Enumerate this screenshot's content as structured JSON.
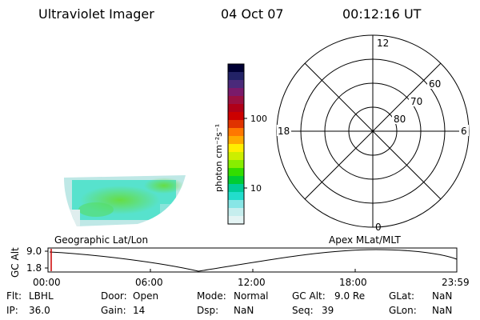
{
  "header": {
    "instrument": "Ultraviolet Imager",
    "date": "04 Oct 07",
    "time": "00:12:16 UT"
  },
  "colorbar": {
    "unit_label": "photon cm⁻²s⁻¹",
    "ticks": [
      "100",
      "10"
    ],
    "colors": [
      "#000033",
      "#222266",
      "#4a2a7a",
      "#7a1a6a",
      "#9a1040",
      "#b00018",
      "#cc0000",
      "#e03300",
      "#ff7700",
      "#ffaa00",
      "#ffee00",
      "#ccee00",
      "#88ee00",
      "#33dd00",
      "#00cc33",
      "#00cc99",
      "#22ddcc",
      "#88e6e6",
      "#c6eeee",
      "#e4f4f4"
    ]
  },
  "map_panel": {
    "label": "Geographic Lat/Lon"
  },
  "polar_plot": {
    "label": "Apex MLat/MLT",
    "mlt_labels": {
      "top": "12",
      "left": "18",
      "right": "6",
      "bottom": "0"
    },
    "lat_labels": [
      "60",
      "70",
      "80"
    ]
  },
  "altitude_plot": {
    "ylabel": "GC Alt",
    "y_ticks": [
      "9.0",
      "1.8"
    ],
    "x_ticks": [
      "00:00",
      "06:00",
      "12:00",
      "18:00",
      "23:59"
    ]
  },
  "status": {
    "row1": [
      {
        "key": "Flt:",
        "value": "LBHL"
      },
      {
        "key": "Door:",
        "value": "Open"
      },
      {
        "key": "Mode:",
        "value": "Normal"
      },
      {
        "key": "GC Alt:",
        "value": "9.0 Re"
      },
      {
        "key": "GLat:",
        "value": "NaN"
      }
    ],
    "row2": [
      {
        "key": "IP:",
        "value": "36.0"
      },
      {
        "key": "Gain:",
        "value": "14"
      },
      {
        "key": "Dsp:",
        "value": "NaN"
      },
      {
        "key": "Seq:",
        "value": "39"
      },
      {
        "key": "GLon:",
        "value": "NaN"
      }
    ]
  },
  "colors": {
    "trace": "#000000",
    "marker": "#cc0000"
  }
}
